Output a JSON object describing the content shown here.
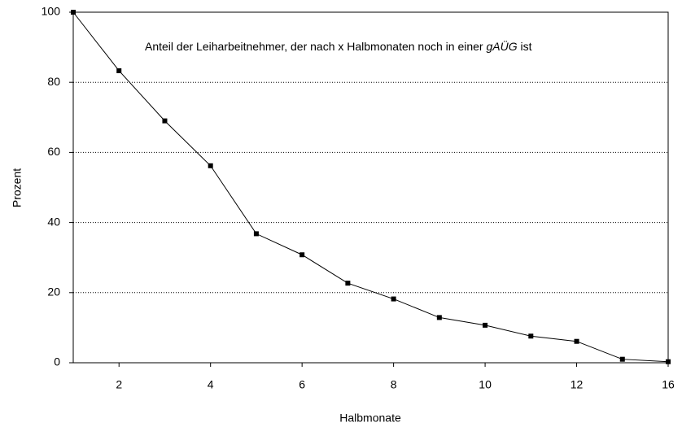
{
  "chart_data": {
    "type": "line",
    "annotation": [
      "Anteil der Leiharbeitnehmer, der nach x Halbmonaten noch in einer ",
      "gAÜG",
      " ist"
    ],
    "x_label": "Halbmonate",
    "y_label": "Prozent",
    "categories": [
      null,
      "2",
      null,
      "4",
      null,
      "6",
      null,
      "8",
      null,
      "10",
      null,
      "12",
      null,
      "16"
    ],
    "values": [
      100,
      83.3,
      69,
      56.2,
      36.8,
      30.8,
      22.7,
      18.2,
      12.9,
      10.7,
      7.6,
      6.1,
      1,
      0.3
    ],
    "color": "#000000",
    "ylim": [
      0,
      100
    ],
    "yticks": [
      0,
      20,
      40,
      60,
      80,
      100
    ],
    "grid": true
  }
}
